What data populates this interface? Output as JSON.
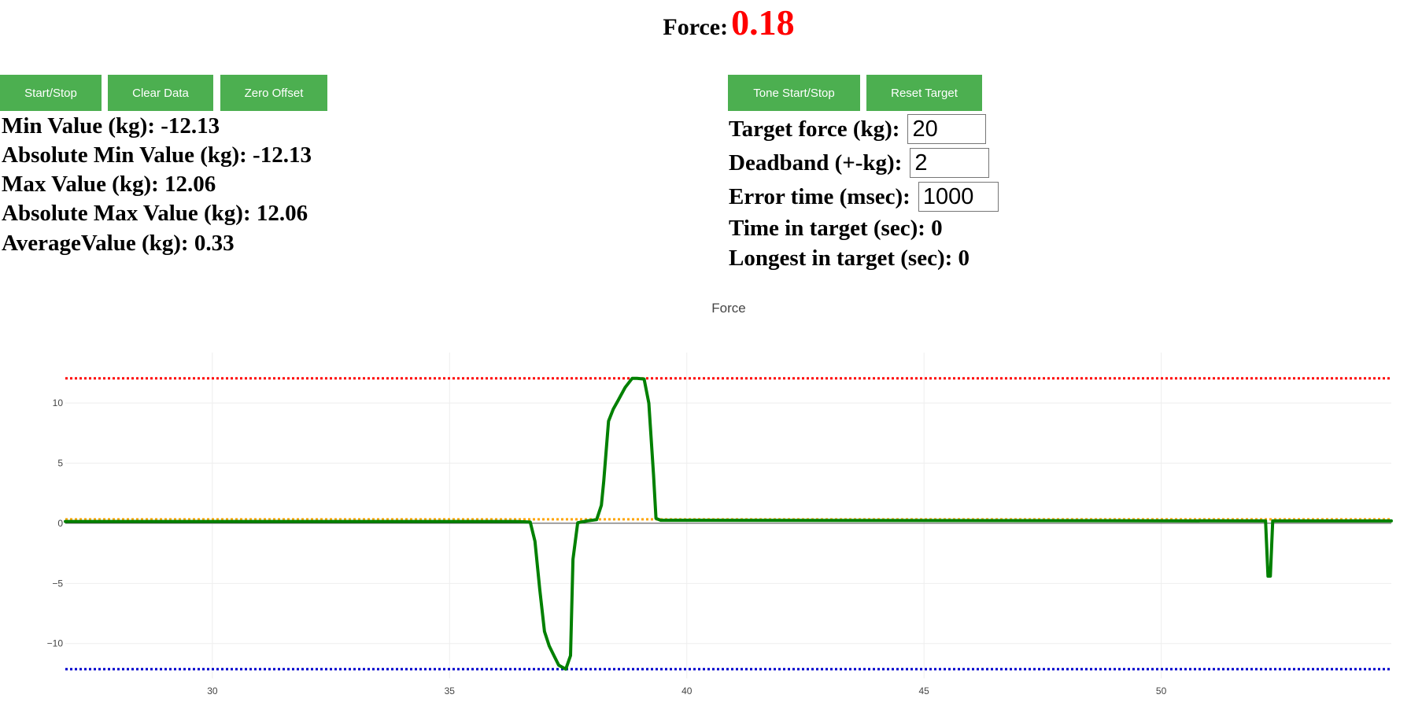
{
  "header": {
    "label": "Force:",
    "value": "0.18"
  },
  "buttons": {
    "start_stop": "Start/Stop",
    "clear_data": "Clear Data",
    "zero_offset": "Zero Offset",
    "tone_start_stop": "Tone Start/Stop",
    "reset_target": "Reset Target"
  },
  "stats": {
    "min_label": "Min Value (kg):",
    "min_value": "-12.13",
    "abs_min_label": "Absolute Min Value (kg):",
    "abs_min_value": "-12.13",
    "max_label": "Max Value (kg):",
    "max_value": "12.06",
    "abs_max_label": "Absolute Max Value (kg):",
    "abs_max_value": "12.06",
    "avg_label": "AverageValue (kg):",
    "avg_value": "0.33"
  },
  "target": {
    "force_label": "Target force (kg):",
    "force_value": "20",
    "deadband_label": "Deadband (+-kg):",
    "deadband_value": "2",
    "error_label": "Error time (msec):",
    "error_value": "1000",
    "time_in_label": "Time in target (sec):",
    "time_in_value": "0",
    "longest_label": "Longest in target (sec):",
    "longest_value": "0"
  },
  "chart_data": {
    "type": "line",
    "title": "Force",
    "xlim": [
      26.9,
      54.85
    ],
    "ylim": [
      -12.9,
      14.2
    ],
    "xticks": [
      30,
      35,
      40,
      45,
      50
    ],
    "yticks": [
      -10,
      -5,
      0,
      5,
      10
    ],
    "ytick_labels": [
      "−10",
      "−5",
      "0",
      "5",
      "10"
    ],
    "grid": true,
    "colors": {
      "force": "#008000",
      "max": "#ff0000",
      "min": "#0000cc",
      "avg": "#ffa500"
    },
    "reference_lines": {
      "max": 12.06,
      "min": -12.13,
      "avg": 0.33
    },
    "series": [
      {
        "x": [
          26.9,
          36.4,
          36.7,
          36.8,
          36.9,
          37.0,
          37.1,
          37.2,
          37.3,
          37.45,
          37.55,
          37.6,
          37.7,
          37.9,
          38.1,
          38.2,
          38.25,
          38.35,
          38.45,
          38.55,
          38.7,
          38.85,
          38.95,
          39.1,
          39.2,
          39.3,
          39.35,
          39.45,
          52.2,
          52.25,
          52.3,
          52.35,
          54.85
        ],
        "y": [
          0.15,
          0.15,
          0.1,
          -1.5,
          -5.5,
          -9.0,
          -10.2,
          -11.0,
          -11.8,
          -12.13,
          -11.0,
          -3.0,
          0.05,
          0.2,
          0.3,
          1.5,
          3.5,
          8.5,
          9.5,
          10.2,
          11.3,
          12.06,
          12.06,
          12.0,
          10.0,
          4.0,
          0.4,
          0.25,
          0.2,
          -4.4,
          -4.4,
          0.2,
          0.2
        ]
      }
    ]
  }
}
